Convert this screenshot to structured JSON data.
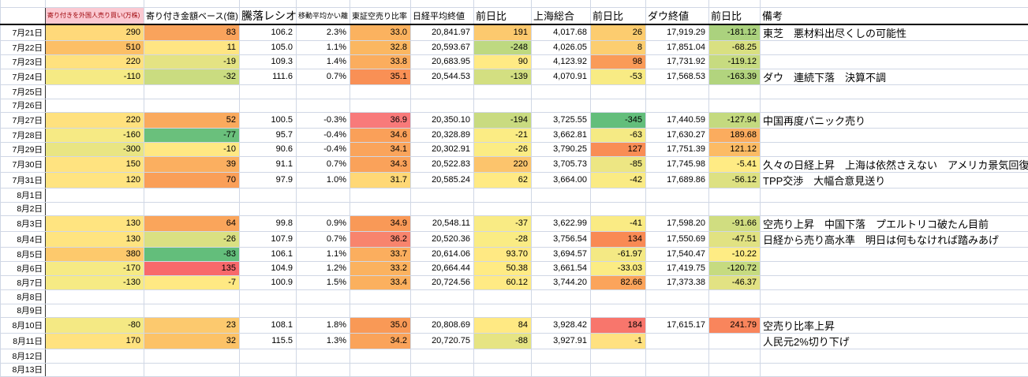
{
  "colors": {
    "gridline": "#d0d7e5",
    "header_accent_bg": "#fbc9d2",
    "header_accent_text": "#9c0006",
    "negative_text": "#ff0000",
    "foreign_col_text": "#d40000",
    "scale_red": "#f8696b",
    "scale_yellow": "#ffeb84",
    "scale_green": "#63be7b"
  },
  "table": {
    "columns": [
      {
        "key": "date",
        "label": ""
      },
      {
        "key": "a",
        "label": "寄り付きを外国人売り買い(万株)"
      },
      {
        "key": "b",
        "label": "寄り付き金額ベース(億)"
      },
      {
        "key": "c",
        "label": "騰落レシオ"
      },
      {
        "key": "d",
        "label": "移動平均かい離"
      },
      {
        "key": "e",
        "label": "東証空売り比率"
      },
      {
        "key": "f",
        "label": "日経平均終値"
      },
      {
        "key": "g",
        "label": "前日比"
      },
      {
        "key": "h",
        "label": "上海総合"
      },
      {
        "key": "i",
        "label": "前日比"
      },
      {
        "key": "j",
        "label": "ダウ終値"
      },
      {
        "key": "k",
        "label": "前日比"
      },
      {
        "key": "l",
        "label": "備考"
      }
    ],
    "rows": [
      {
        "date": "7月21日",
        "cells": [
          [
            "290",
            "#ffd97a",
            "d"
          ],
          [
            "83",
            "#f9a35c",
            ""
          ],
          [
            "106.2",
            "",
            ""
          ],
          [
            "2.3%",
            "",
            ""
          ],
          [
            "33.0",
            "#fbb25f",
            ""
          ],
          [
            "20,841.97",
            "",
            ""
          ],
          [
            "191",
            "#fcc96e",
            ""
          ],
          [
            "4,017.68",
            "",
            ""
          ],
          [
            "26",
            "#fccc6f",
            ""
          ],
          [
            "17,919.29",
            "",
            ""
          ],
          [
            "-181.12",
            "#abd27e",
            "r"
          ]
        ],
        "remark": "東芝　悪材料出尽くしの可能性"
      },
      {
        "date": "7月22日",
        "cells": [
          [
            "510",
            "#fcbf66",
            "d"
          ],
          [
            "11",
            "#ffe583",
            ""
          ],
          [
            "105.0",
            "",
            ""
          ],
          [
            "1.1%",
            "",
            ""
          ],
          [
            "32.8",
            "#fbb761",
            ""
          ],
          [
            "20,593.67",
            "",
            ""
          ],
          [
            "-248",
            "#bed980",
            "r"
          ],
          [
            "4,026.05",
            "",
            ""
          ],
          [
            "8",
            "#fcce70",
            ""
          ],
          [
            "17,851.04",
            "",
            ""
          ],
          [
            "-68.25",
            "#d9e081",
            "r"
          ]
        ],
        "remark": ""
      },
      {
        "date": "7月23日",
        "cells": [
          [
            "220",
            "#ffe17e",
            "d"
          ],
          [
            "-19",
            "#e4e383",
            ""
          ],
          [
            "109.3",
            "",
            ""
          ],
          [
            "1.4%",
            "",
            ""
          ],
          [
            "33.8",
            "#fbad5e",
            ""
          ],
          [
            "20,683.95",
            "",
            ""
          ],
          [
            "90",
            "#ffea84",
            ""
          ],
          [
            "4,123.92",
            "",
            ""
          ],
          [
            "98",
            "#fa9b58",
            ""
          ],
          [
            "17,731.92",
            "",
            ""
          ],
          [
            "-119.12",
            "#c7db80",
            "r"
          ]
        ],
        "remark": ""
      },
      {
        "date": "7月24日",
        "cells": [
          [
            "-110",
            "#f5ea84",
            "d"
          ],
          [
            "-32",
            "#cadc80",
            ""
          ],
          [
            "111.6",
            "",
            ""
          ],
          [
            "0.7%",
            "",
            ""
          ],
          [
            "35.1",
            "#f99055",
            ""
          ],
          [
            "20,544.53",
            "",
            ""
          ],
          [
            "-139",
            "#d3df81",
            "r"
          ],
          [
            "4,070.91",
            "",
            ""
          ],
          [
            "-53",
            "#f8eb84",
            "r"
          ],
          [
            "17,568.53",
            "",
            ""
          ],
          [
            "-163.39",
            "#b2d47e",
            "r"
          ]
        ],
        "remark": "ダウ　連続下落　決算不調"
      },
      {
        "date": "7月25日",
        "cells": [],
        "remark": ""
      },
      {
        "date": "7月26日",
        "cells": [],
        "remark": ""
      },
      {
        "date": "7月27日",
        "cells": [
          [
            "220",
            "#ffe17e",
            "d"
          ],
          [
            "52",
            "#faaa5d",
            ""
          ],
          [
            "100.5",
            "",
            ""
          ],
          [
            "-0.3%",
            "",
            ""
          ],
          [
            "36.9",
            "#f87a7a",
            ""
          ],
          [
            "20,350.10",
            "",
            ""
          ],
          [
            "-194",
            "#c9db80",
            "r"
          ],
          [
            "3,725.55",
            "",
            ""
          ],
          [
            "-345",
            "#63be7b",
            "r"
          ],
          [
            "17,440.59",
            "",
            ""
          ],
          [
            "-127.94",
            "#c4da7f",
            "r"
          ]
        ],
        "remark": "中国再度パニック売り"
      },
      {
        "date": "7月28日",
        "cells": [
          [
            "-160",
            "#f6ea84",
            "d"
          ],
          [
            "-77",
            "#6ac07c",
            ""
          ],
          [
            "95.7",
            "",
            ""
          ],
          [
            "-0.4%",
            "",
            ""
          ],
          [
            "34.6",
            "#faa059",
            ""
          ],
          [
            "20,328.89",
            "",
            ""
          ],
          [
            "-21",
            "#fbec84",
            "r"
          ],
          [
            "3,662.81",
            "",
            ""
          ],
          [
            "-63",
            "#f5ea84",
            "r"
          ],
          [
            "17,630.27",
            "",
            ""
          ],
          [
            "189.68",
            "#fbac5e",
            ""
          ]
        ],
        "remark": ""
      },
      {
        "date": "7月29日",
        "cells": [
          [
            "-300",
            "#e9e583",
            "d"
          ],
          [
            "-10",
            "#ffe883",
            ""
          ],
          [
            "90.6",
            "",
            ""
          ],
          [
            "-0.4%",
            "",
            ""
          ],
          [
            "34.1",
            "#faa45b",
            ""
          ],
          [
            "20,302.91",
            "",
            ""
          ],
          [
            "-26",
            "#fbec84",
            "r"
          ],
          [
            "3,790.25",
            "",
            ""
          ],
          [
            "127",
            "#f98d55",
            ""
          ],
          [
            "17,751.39",
            "",
            ""
          ],
          [
            "121.12",
            "#fcbb64",
            ""
          ]
        ],
        "remark": ""
      },
      {
        "date": "7月30日",
        "cells": [
          [
            "150",
            "#ffe380",
            "d"
          ],
          [
            "39",
            "#fbaf60",
            ""
          ],
          [
            "91.1",
            "",
            ""
          ],
          [
            "0.7%",
            "",
            ""
          ],
          [
            "34.3",
            "#faa25a",
            ""
          ],
          [
            "20,522.83",
            "",
            ""
          ],
          [
            "220",
            "#fcc46c",
            ""
          ],
          [
            "3,705.73",
            "",
            ""
          ],
          [
            "-85",
            "#ede683",
            "r"
          ],
          [
            "17,745.98",
            "",
            ""
          ],
          [
            "-5.41",
            "#ffeb84",
            "r"
          ]
        ],
        "remark": "久々の日経上昇　上海は依然さえない　アメリカ景気回復中"
      },
      {
        "date": "7月31日",
        "cells": [
          [
            "120",
            "#ffe481",
            "d"
          ],
          [
            "70",
            "#fa9f58",
            ""
          ],
          [
            "97.9",
            "",
            ""
          ],
          [
            "1.0%",
            "",
            ""
          ],
          [
            "31.7",
            "#ffd876",
            ""
          ],
          [
            "20,585.24",
            "",
            ""
          ],
          [
            "62",
            "#ffea84",
            ""
          ],
          [
            "3,664.00",
            "",
            ""
          ],
          [
            "-42",
            "#faeb84",
            "r"
          ],
          [
            "17,689.86",
            "",
            ""
          ],
          [
            "-56.12",
            "#dde182",
            "r"
          ]
        ],
        "remark": "TPP交渉　大幅合意見送り"
      },
      {
        "date": "8月1日",
        "cells": [],
        "remark": ""
      },
      {
        "date": "8月2日",
        "cells": [],
        "remark": ""
      },
      {
        "date": "8月3日",
        "cells": [
          [
            "130",
            "#ffe480",
            "d"
          ],
          [
            "64",
            "#faa55b",
            ""
          ],
          [
            "99.8",
            "",
            ""
          ],
          [
            "0.9%",
            "",
            ""
          ],
          [
            "34.9",
            "#f99957",
            ""
          ],
          [
            "20,548.11",
            "",
            ""
          ],
          [
            "-37",
            "#f9eb84",
            "r"
          ],
          [
            "3,622.99",
            "",
            ""
          ],
          [
            "-41",
            "#faeb84",
            "r"
          ],
          [
            "17,598.20",
            "",
            ""
          ],
          [
            "-91.66",
            "#d0dd80",
            "r"
          ]
        ],
        "remark": "空売り上昇　中国下落　プエルトリコ破たん目前"
      },
      {
        "date": "8月4日",
        "cells": [
          [
            "130",
            "#ffe480",
            "d"
          ],
          [
            "-26",
            "#dae082",
            ""
          ],
          [
            "107.9",
            "",
            ""
          ],
          [
            "0.7%",
            "",
            ""
          ],
          [
            "36.2",
            "#f8846d",
            ""
          ],
          [
            "20,520.36",
            "",
            ""
          ],
          [
            "-28",
            "#faec84",
            "r"
          ],
          [
            "3,756.54",
            "",
            ""
          ],
          [
            "134",
            "#f98a54",
            ""
          ],
          [
            "17,550.69",
            "",
            ""
          ],
          [
            "-47.51",
            "#e1e282",
            "r"
          ]
        ],
        "remark": "日経から売り高水準　明日は何もなければ踏みあげ"
      },
      {
        "date": "8月5日",
        "cells": [
          [
            "380",
            "#fdc96c",
            "d"
          ],
          [
            "-83",
            "#63be7b",
            ""
          ],
          [
            "106.1",
            "",
            ""
          ],
          [
            "1.1%",
            "",
            ""
          ],
          [
            "33.7",
            "#fbae5e",
            ""
          ],
          [
            "20,614.06",
            "",
            ""
          ],
          [
            "93.70",
            "#ffe983",
            ""
          ],
          [
            "3,694.57",
            "",
            ""
          ],
          [
            "-61.97",
            "#f4e984",
            "r"
          ],
          [
            "17,540.47",
            "",
            ""
          ],
          [
            "-10.22",
            "#feec84",
            "r"
          ]
        ],
        "remark": ""
      },
      {
        "date": "8月6日",
        "cells": [
          [
            "-170",
            "#f6ea84",
            "d"
          ],
          [
            "135",
            "#f8696b",
            ""
          ],
          [
            "104.9",
            "",
            ""
          ],
          [
            "1.2%",
            "",
            ""
          ],
          [
            "33.2",
            "#fbb25f",
            ""
          ],
          [
            "20,664.44",
            "",
            ""
          ],
          [
            "50.38",
            "#ffeb84",
            ""
          ],
          [
            "3,661.54",
            "",
            ""
          ],
          [
            "-33.03",
            "#fbec84",
            "r"
          ],
          [
            "17,419.75",
            "",
            ""
          ],
          [
            "-120.72",
            "#c6db80",
            "r"
          ]
        ],
        "remark": ""
      },
      {
        "date": "8月7日",
        "cells": [
          [
            "-130",
            "#f6ea84",
            "d"
          ],
          [
            "-7",
            "#ffe983",
            ""
          ],
          [
            "100.9",
            "",
            ""
          ],
          [
            "1.5%",
            "",
            ""
          ],
          [
            "33.4",
            "#fbb05e",
            ""
          ],
          [
            "20,724.56",
            "",
            ""
          ],
          [
            "60.12",
            "#ffea84",
            ""
          ],
          [
            "3,744.20",
            "",
            ""
          ],
          [
            "82.66",
            "#fba45b",
            ""
          ],
          [
            "17,373.38",
            "",
            ""
          ],
          [
            "-46.37",
            "#e2e283",
            "r"
          ]
        ],
        "remark": ""
      },
      {
        "date": "8月8日",
        "cells": [],
        "remark": ""
      },
      {
        "date": "8月9日",
        "cells": [],
        "remark": ""
      },
      {
        "date": "8月10日",
        "cells": [
          [
            "-80",
            "#f4e984",
            "d"
          ],
          [
            "23",
            "#fcc96e",
            ""
          ],
          [
            "108.1",
            "",
            ""
          ],
          [
            "1.8%",
            "",
            ""
          ],
          [
            "35.0",
            "#f99956",
            ""
          ],
          [
            "20,808.69",
            "",
            ""
          ],
          [
            "84",
            "#ffe983",
            ""
          ],
          [
            "3,928.42",
            "",
            ""
          ],
          [
            "184",
            "#f8766c",
            ""
          ],
          [
            "17,615.17",
            "",
            ""
          ],
          [
            "241.79",
            "#f9855c",
            ""
          ]
        ],
        "remark": "空売り比率上昇"
      },
      {
        "date": "8月11日",
        "cells": [
          [
            "170",
            "#ffe27f",
            "d"
          ],
          [
            "32",
            "#fcc267",
            ""
          ],
          [
            "115.5",
            "",
            ""
          ],
          [
            "1.3%",
            "",
            ""
          ],
          [
            "34.2",
            "#faa35a",
            ""
          ],
          [
            "20,720.75",
            "",
            ""
          ],
          [
            "-88",
            "#e6e483",
            "r"
          ],
          [
            "3,927.91",
            "",
            ""
          ],
          [
            "-1",
            "#ffe181",
            "r"
          ],
          [
            "",
            "",
            ""
          ],
          [
            "",
            "",
            ""
          ]
        ],
        "remark": "人民元2%切り下げ"
      },
      {
        "date": "8月12日",
        "cells": [],
        "remark": ""
      },
      {
        "date": "8月13日",
        "cells": [],
        "remark": ""
      }
    ]
  }
}
